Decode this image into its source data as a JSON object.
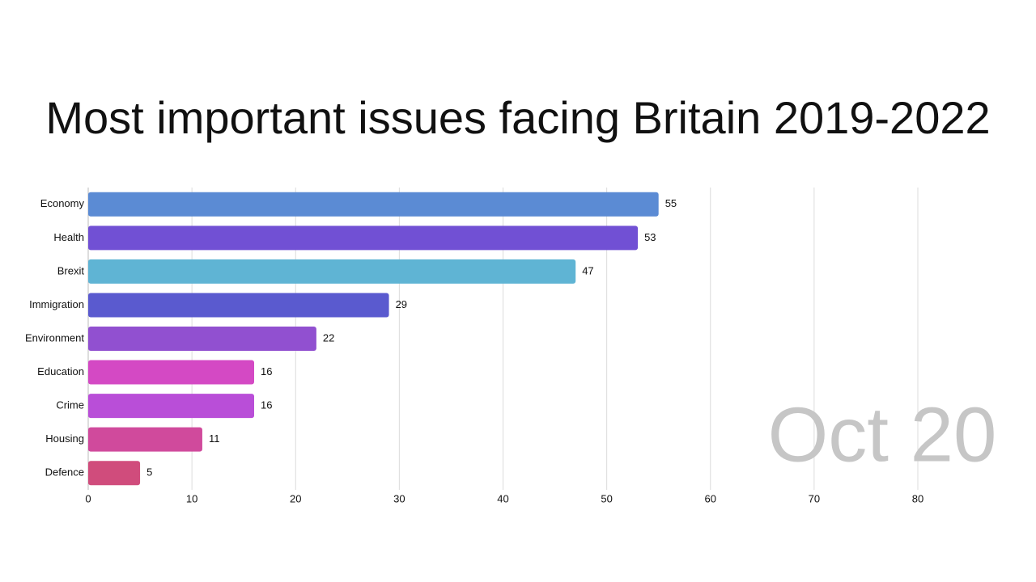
{
  "chart_data": {
    "type": "bar",
    "orientation": "horizontal",
    "title": "Most important issues facing Britain 2019-2022",
    "annotation": "Oct 20",
    "categories": [
      "Economy",
      "Health",
      "Brexit",
      "Immigration",
      "Environment",
      "Education",
      "Crime",
      "Housing",
      "Defence"
    ],
    "values": [
      55,
      53,
      47,
      29,
      22,
      16,
      16,
      11,
      5
    ],
    "colors": [
      "#5b8bd4",
      "#7150d4",
      "#5fb4d4",
      "#5a5acf",
      "#9150d0",
      "#d449c4",
      "#b94ed8",
      "#d04a9c",
      "#d04c7c"
    ],
    "xlim": [
      0,
      80
    ],
    "xticks": [
      0,
      10,
      20,
      30,
      40,
      50,
      60,
      70,
      80
    ],
    "grid": true
  }
}
